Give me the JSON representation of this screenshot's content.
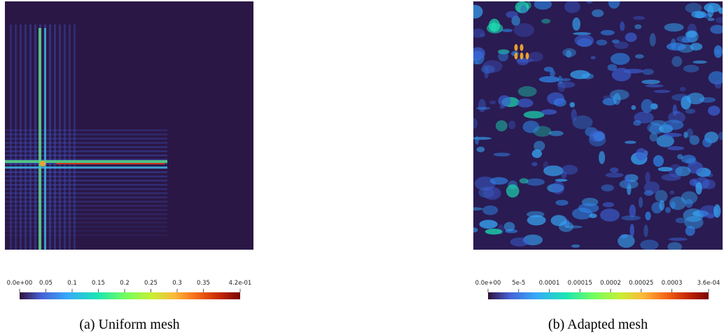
{
  "figure": {
    "panels": [
      {
        "caption": "(a) Uniform mesh",
        "colorbar": {
          "range": [
            0,
            0.42
          ],
          "ticks": [
            {
              "value": 0,
              "label": "0.0e+00"
            },
            0.05,
            0.1,
            0.15,
            0.2,
            0.25,
            0.3,
            0.35,
            {
              "value": 0.42,
              "label": "4.2e-01"
            }
          ]
        }
      },
      {
        "caption": "(b) Adapted mesh",
        "colorbar": {
          "range": [
            0,
            0.00036
          ],
          "ticks": [
            {
              "value": 0,
              "label": "0.0e+00"
            },
            {
              "value": 5e-05,
              "label": "5e-5"
            },
            0.0001,
            0.00015,
            0.0002,
            0.00025,
            0.0003,
            {
              "value": 0.00036,
              "label": "3.6e-04"
            }
          ]
        }
      }
    ]
  }
}
